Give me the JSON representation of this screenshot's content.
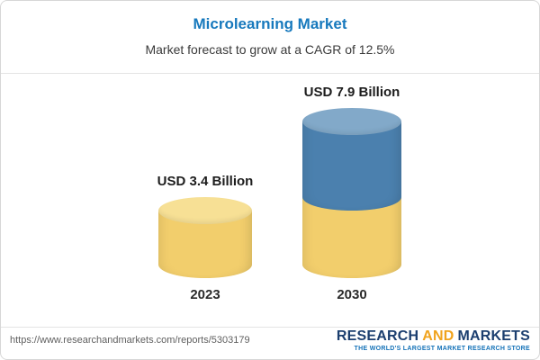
{
  "header": {
    "title": "Microlearning Market",
    "subtitle": "Market forecast to grow at a CAGR of 12.5%",
    "title_color": "#1779bd"
  },
  "chart_data": {
    "type": "bar",
    "variant": "3d-cylinder",
    "categories": [
      "2023",
      "2030"
    ],
    "values": [
      3.4,
      7.9
    ],
    "value_labels": [
      "USD 3.4 Billion",
      "USD 7.9 Billion"
    ],
    "unit": "USD Billion",
    "cagr_pct": 12.5,
    "title": "Microlearning Market",
    "subtitle": "Market forecast to grow at a CAGR of 12.5%",
    "legend": "none",
    "grid": false,
    "colors": {
      "base": "#F2CE6C",
      "base_cap": "#F7E095",
      "growth": "#4B80AE",
      "growth_cap": "#82A9C9"
    }
  },
  "footer": {
    "url": "https://www.researchandmarkets.com/reports/5303179",
    "logo": {
      "word1": "RESEARCH",
      "word2": "AND",
      "word3": "MARKETS",
      "tagline": "THE WORLD'S LARGEST MARKET RESEARCH STORE",
      "word_color": "#1b3e6f",
      "and_color": "#F0A31D",
      "tagline_color": "#1472b8"
    }
  }
}
